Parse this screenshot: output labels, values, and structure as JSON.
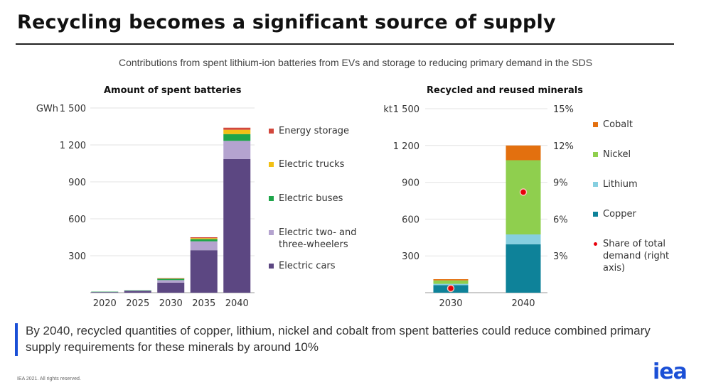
{
  "header": {
    "title": "Recycling becomes a significant source of supply",
    "subtitle": "Contributions from spent lithium-ion batteries from EVs and storage to reducing primary demand in the SDS"
  },
  "callout": {
    "text": "By 2040, recycled quantities of copper, lithium, nickel and cobalt from spent batteries could reduce combined primary supply requirements for these minerals by around 10%"
  },
  "footer": {
    "copyright": "IEA 2021. All rights reserved.",
    "logo": "iea"
  },
  "colors": {
    "accent": "#1a4fd6"
  },
  "chart_data": [
    {
      "type": "bar",
      "stacked": true,
      "title": "Amount of spent batteries",
      "ylabel": "GWh",
      "ylim": [
        0,
        1500
      ],
      "yticks": [
        300,
        600,
        900,
        1200,
        1500
      ],
      "ytick_labels": [
        "300",
        "600",
        "900",
        "1 200",
        "1 500"
      ],
      "grid": true,
      "legend_position": "right",
      "categories": [
        "2020",
        "2025",
        "2030",
        "2035",
        "2040"
      ],
      "series": [
        {
          "name": "Electric cars",
          "color": "#5c4782",
          "values": [
            5,
            14,
            82,
            345,
            1085
          ]
        },
        {
          "name": "Electric two- and three-wheelers",
          "color": "#b4a3cf",
          "values": [
            2,
            3,
            20,
            72,
            148
          ]
        },
        {
          "name": "Electric buses",
          "color": "#1ea54a",
          "values": [
            1,
            3,
            12,
            18,
            55
          ]
        },
        {
          "name": "Electric trucks",
          "color": "#f2c014",
          "values": [
            0,
            0,
            2,
            8,
            35
          ]
        },
        {
          "name": "Energy storage",
          "color": "#d2473c",
          "values": [
            0,
            0,
            2,
            7,
            17
          ]
        }
      ],
      "legend_order": [
        "Energy storage",
        "Electric trucks",
        "Electric buses",
        "Electric two- and three-wheelers",
        "Electric cars"
      ]
    },
    {
      "type": "bar",
      "stacked": true,
      "title": "Recycled and reused minerals",
      "ylabel": "kt",
      "ylim": [
        0,
        1500
      ],
      "yticks": [
        300,
        600,
        900,
        1200,
        1500
      ],
      "ytick_labels": [
        "300",
        "600",
        "900",
        "1 200",
        "1 500"
      ],
      "y2lim": [
        0,
        15
      ],
      "y2ticks": [
        3,
        6,
        9,
        12,
        15
      ],
      "y2tick_labels": [
        "3%",
        "6%",
        "9%",
        "12%",
        "15%"
      ],
      "grid": true,
      "legend_position": "right",
      "categories": [
        "2030",
        "2040"
      ],
      "series": [
        {
          "name": "Copper",
          "color": "#0e8299",
          "values": [
            62,
            395
          ]
        },
        {
          "name": "Lithium",
          "color": "#86cfe0",
          "values": [
            10,
            80
          ]
        },
        {
          "name": "Nickel",
          "color": "#8fcf4e",
          "values": [
            28,
            605
          ]
        },
        {
          "name": "Cobalt",
          "color": "#e3700f",
          "values": [
            10,
            120
          ]
        }
      ],
      "share_series": {
        "name": "Share of total demand (right axis)",
        "color": "#e8000b",
        "values": [
          0.35,
          8.2
        ]
      },
      "legend_order": [
        "Cobalt",
        "Nickel",
        "Lithium",
        "Copper"
      ]
    }
  ]
}
